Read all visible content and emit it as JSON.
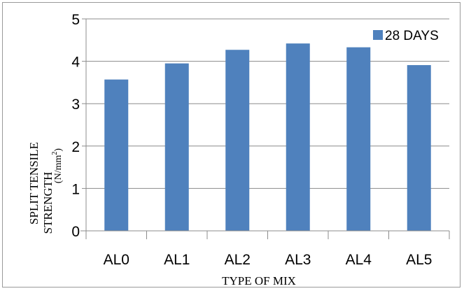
{
  "chart_data": {
    "type": "bar",
    "categories": [
      "AL0",
      "AL1",
      "AL2",
      "AL3",
      "AL4",
      "AL5"
    ],
    "series": [
      {
        "name": "28 DAYS",
        "values": [
          3.57,
          3.95,
          4.27,
          4.42,
          4.33,
          3.91
        ]
      }
    ],
    "xlabel": "TYPE OF MIX",
    "ylabel_line1": "SPLIT TENSILE",
    "ylabel_line2": "STRENGTH",
    "ylabel_unit_base": "(N/mm",
    "ylabel_unit_exp": "2",
    "ylabel_unit_close": ")",
    "ylim": [
      0,
      5
    ],
    "yticks": [
      "0",
      "1",
      "2",
      "3",
      "4",
      "5"
    ],
    "grid": true,
    "legend_position": "top-right",
    "colors": {
      "bar": "#4f81bd",
      "grid": "#8c8c8c",
      "axis": "#8c8c8c"
    }
  }
}
